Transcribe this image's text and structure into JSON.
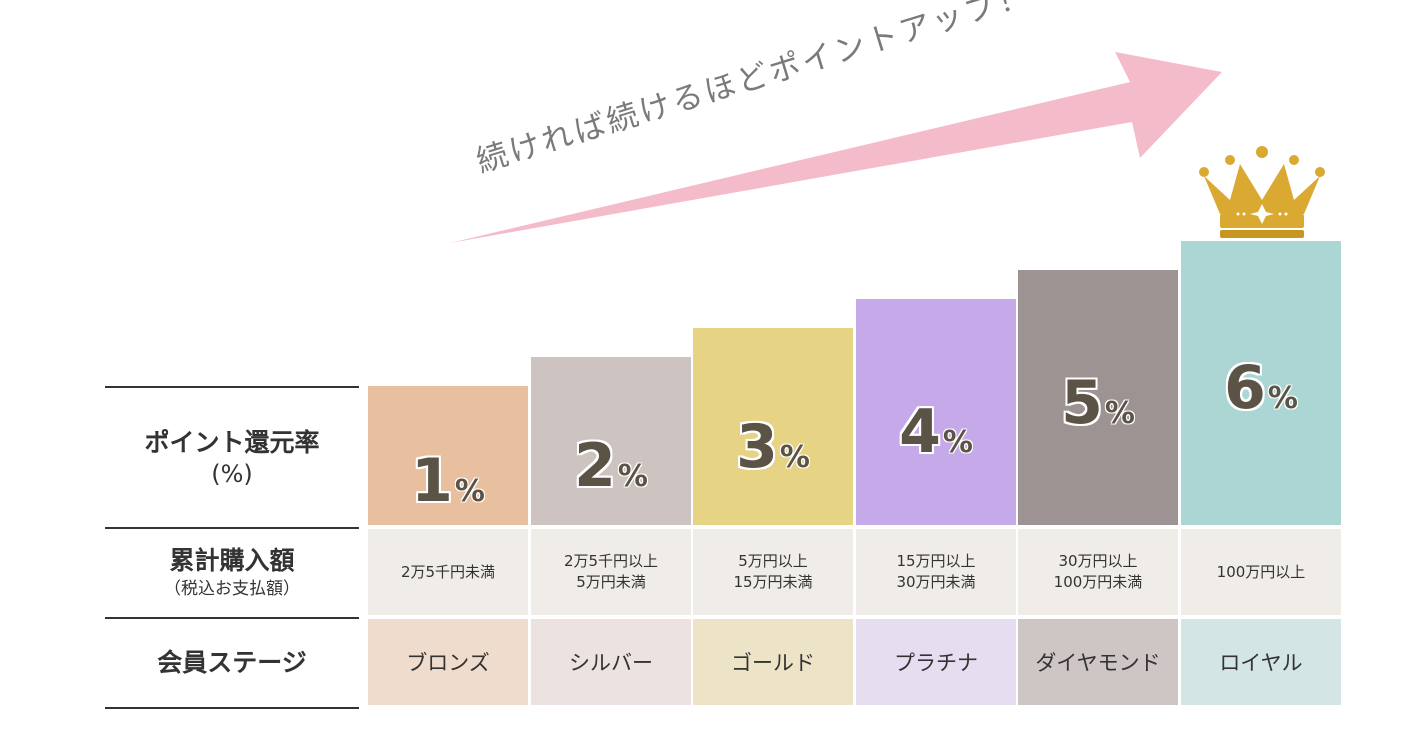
{
  "slogan": "続ければ続けるほどポイントアップ！",
  "row_labels": {
    "rate_main": "ポイント還元率",
    "rate_sub": "(%)",
    "amount_main": "累計購入額",
    "amount_sub": "（税込お支払額）",
    "stage_main": "会員ステージ"
  },
  "unit_symbol": "%",
  "colors": {
    "arrow": "#f4bccb",
    "crown": "#d9a931"
  },
  "chart_data": {
    "type": "bar",
    "categories": [
      "ブロンズ",
      "シルバー",
      "ゴールド",
      "プラチナ",
      "ダイヤモンド",
      "ロイヤル"
    ],
    "values": [
      1,
      2,
      3,
      4,
      5,
      6
    ],
    "value_labels": [
      "1",
      "2",
      "3",
      "4",
      "5",
      "6"
    ],
    "amounts": [
      [
        "2万5千円未満"
      ],
      [
        "2万5千円以上",
        "5万円未満"
      ],
      [
        "5万円以上",
        "15万円未満"
      ],
      [
        "15万円以上",
        "30万円未満"
      ],
      [
        "30万円以上",
        "100万円未満"
      ],
      [
        "100万円以上"
      ]
    ],
    "bar_colors": [
      "#e8c09f",
      "#cdc4c1",
      "#e6d383",
      "#c5a9e8",
      "#9c9392",
      "#acd6d4"
    ],
    "stage_colors": [
      "#f0dccc",
      "#ece3e1",
      "#ede4c8",
      "#e7ddf1",
      "#cdc6c5",
      "#d3e6e5"
    ],
    "ylim": [
      0,
      6
    ]
  }
}
